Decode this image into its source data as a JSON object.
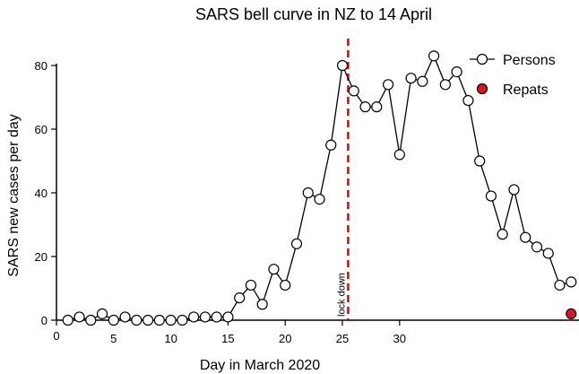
{
  "chart_data": {
    "type": "scatter",
    "title": "SARS bell curve in NZ to 14 April",
    "xlabel": "Day in March 2020",
    "ylabel": "SARS new cases per day",
    "xlim": [
      0,
      46
    ],
    "ylim": [
      0,
      80
    ],
    "xticks": [
      0,
      5,
      10,
      15,
      20,
      25,
      30
    ],
    "yticks": [
      0,
      20,
      40,
      60,
      80
    ],
    "grid": false,
    "legend_position": "top-right",
    "annotations": [
      {
        "text": "lock down",
        "x": 25.5,
        "style": "vertical dashed line",
        "color": "#e60000"
      }
    ],
    "series": [
      {
        "name": "Persons",
        "marker": "open-circle",
        "line": true,
        "color": "#000000",
        "x": [
          1,
          2,
          3,
          4,
          5,
          6,
          7,
          8,
          9,
          10,
          11,
          12,
          13,
          14,
          15,
          16,
          17,
          18,
          19,
          20,
          21,
          22,
          23,
          24,
          25,
          26,
          27,
          28,
          29,
          30,
          31,
          32,
          33,
          34,
          35,
          36,
          37,
          38,
          39,
          40,
          41,
          42,
          43,
          44,
          45
        ],
        "y": [
          0,
          1,
          0,
          2,
          0,
          1,
          0,
          0,
          0,
          0,
          0,
          1,
          1,
          1,
          1,
          7,
          11,
          5,
          16,
          11,
          24,
          40,
          38,
          55,
          80,
          72,
          67,
          67,
          74,
          52,
          76,
          75,
          83,
          74,
          78,
          69,
          50,
          39,
          27,
          41,
          26,
          23,
          21,
          11,
          12
        ]
      },
      {
        "name": "Repats",
        "marker": "filled-circle",
        "line": false,
        "color": "#e0141e",
        "x": [
          45
        ],
        "y": [
          2
        ]
      }
    ]
  }
}
